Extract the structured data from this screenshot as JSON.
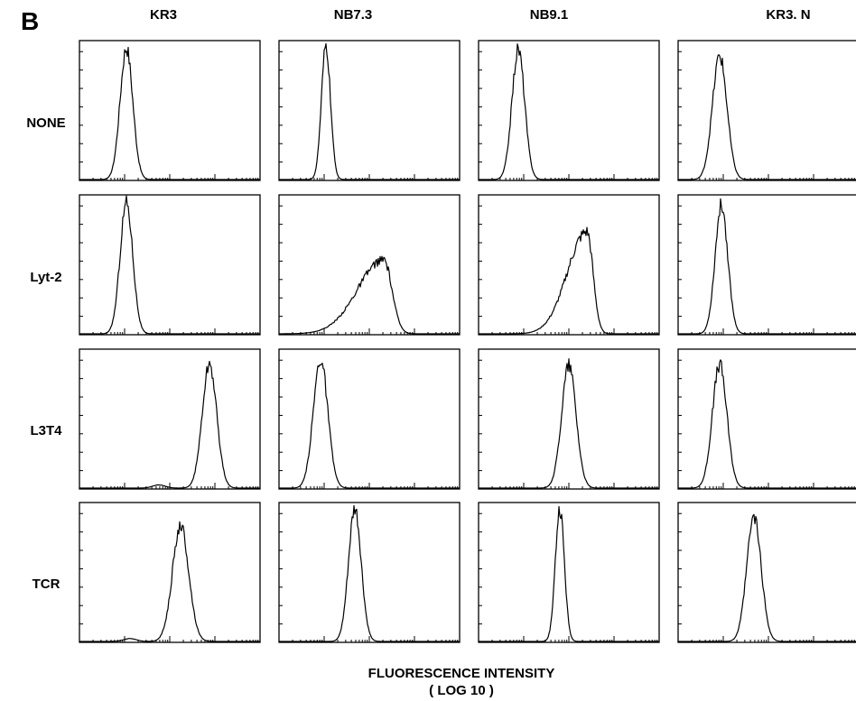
{
  "panel_letter": "B",
  "xlabel": "FLUORESCENCE INTENSITY",
  "xlabel_unit": "( LOG 10 )",
  "columns": [
    "KR3",
    "NB7.3",
    "NB9.1",
    "KR3. N"
  ],
  "rows": [
    "NONE",
    "Lyt-2",
    "L3T4",
    "TCR"
  ],
  "chart_data": {
    "type": "histogram-grid",
    "title": "",
    "xlabel": "FLUORESCENCE INTENSITY ( LOG 10 )",
    "ylabel": "",
    "xscale": "log",
    "xlim": [
      0,
      1
    ],
    "ylim": [
      0,
      1
    ],
    "grid": false,
    "tick_labels_shown": false,
    "columns": [
      "KR3",
      "NB7.3",
      "NB9.1",
      "KR3. N"
    ],
    "rows": [
      "NONE",
      "Lyt-2",
      "L3T4",
      "TCR"
    ],
    "panels": [
      {
        "row": "NONE",
        "column": "KR3",
        "peak_x": 0.26,
        "peak_height": 0.98,
        "width": 0.035,
        "shape": "symmetric"
      },
      {
        "row": "NONE",
        "column": "NB7.3",
        "peak_x": 0.26,
        "peak_height": 0.99,
        "width": 0.025,
        "shape": "symmetric"
      },
      {
        "row": "NONE",
        "column": "NB9.1",
        "peak_x": 0.22,
        "peak_height": 0.97,
        "width": 0.035,
        "shape": "symmetric"
      },
      {
        "row": "NONE",
        "column": "KR3. N",
        "peak_x": 0.23,
        "peak_height": 0.92,
        "width": 0.04,
        "shape": "symmetric"
      },
      {
        "row": "Lyt-2",
        "column": "KR3",
        "peak_x": 0.26,
        "peak_height": 0.98,
        "width": 0.035,
        "shape": "symmetric"
      },
      {
        "row": "Lyt-2",
        "column": "NB7.3",
        "peak_x": 0.58,
        "peak_height": 0.55,
        "width": 0.06,
        "shape": "left-skewed"
      },
      {
        "row": "Lyt-2",
        "column": "NB9.1",
        "peak_x": 0.6,
        "peak_height": 0.76,
        "width": 0.045,
        "shape": "left-skewed"
      },
      {
        "row": "Lyt-2",
        "column": "KR3. N",
        "peak_x": 0.24,
        "peak_height": 0.96,
        "width": 0.035,
        "shape": "symmetric"
      },
      {
        "row": "L3T4",
        "column": "KR3",
        "peak_x": 0.72,
        "peak_height": 0.92,
        "width": 0.04,
        "shape": "left-tail"
      },
      {
        "row": "L3T4",
        "column": "NB7.3",
        "peak_x": 0.23,
        "peak_height": 0.96,
        "width": 0.04,
        "shape": "symmetric"
      },
      {
        "row": "L3T4",
        "column": "NB9.1",
        "peak_x": 0.5,
        "peak_height": 0.92,
        "width": 0.04,
        "shape": "symmetric"
      },
      {
        "row": "L3T4",
        "column": "KR3. N",
        "peak_x": 0.23,
        "peak_height": 0.92,
        "width": 0.04,
        "shape": "symmetric"
      },
      {
        "row": "TCR",
        "column": "KR3",
        "peak_x": 0.56,
        "peak_height": 0.86,
        "width": 0.045,
        "shape": "left-tail"
      },
      {
        "row": "TCR",
        "column": "NB7.3",
        "peak_x": 0.42,
        "peak_height": 0.98,
        "width": 0.035,
        "shape": "symmetric"
      },
      {
        "row": "TCR",
        "column": "NB9.1",
        "peak_x": 0.45,
        "peak_height": 0.99,
        "width": 0.025,
        "shape": "symmetric"
      },
      {
        "row": "TCR",
        "column": "KR3. N",
        "peak_x": 0.42,
        "peak_height": 0.92,
        "width": 0.04,
        "shape": "symmetric"
      }
    ]
  }
}
